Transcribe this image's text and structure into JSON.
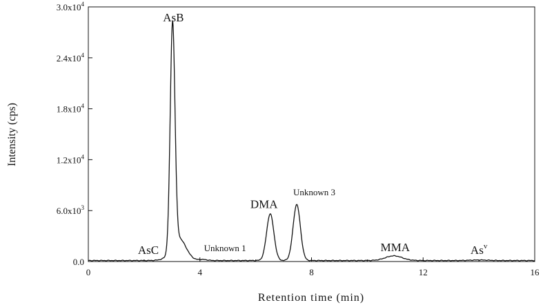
{
  "chart_data": {
    "type": "line",
    "title": "",
    "xlabel": "Retention time (min)",
    "ylabel": "Intensity (cps)",
    "xlim": [
      0,
      16
    ],
    "ylim": [
      0,
      30000
    ],
    "x_ticks": [
      0,
      4,
      8,
      12,
      16
    ],
    "y_ticks": [
      {
        "value": 0,
        "label": "0.0",
        "exp": ""
      },
      {
        "value": 6000,
        "label": "6.0x10",
        "exp": "3"
      },
      {
        "value": 12000,
        "label": "1.2x10",
        "exp": "4"
      },
      {
        "value": 18000,
        "label": "1.8x10",
        "exp": "4"
      },
      {
        "value": 24000,
        "label": "2.4x10",
        "exp": "4"
      },
      {
        "value": 30000,
        "label": "3.0x10",
        "exp": "4"
      }
    ],
    "grid": false,
    "line_color": "#111111",
    "baseline": 120,
    "peaks": [
      {
        "center": 2.65,
        "height": 60,
        "width": 0.18
      },
      {
        "center": 3.02,
        "height": 26500,
        "width": 0.085
      },
      {
        "center": 3.25,
        "height": 2600,
        "width": 0.25
      },
      {
        "center": 4.1,
        "height": 120,
        "width": 0.15
      },
      {
        "center": 6.52,
        "height": 5500,
        "width": 0.13
      },
      {
        "center": 7.47,
        "height": 6600,
        "width": 0.13
      },
      {
        "center": 10.95,
        "height": 550,
        "width": 0.3
      },
      {
        "center": 14.0,
        "height": 60,
        "width": 0.3
      }
    ],
    "annotations": [
      {
        "text": "AsB",
        "sup": "",
        "x": 3.05,
        "y": 28300,
        "size": "large"
      },
      {
        "text": "AsC",
        "sup": "",
        "x": 2.15,
        "y": 900,
        "size": "large"
      },
      {
        "text": "Unknown 1",
        "sup": "",
        "x": 4.9,
        "y": 1200,
        "size": "small"
      },
      {
        "text": "DMA",
        "sup": "",
        "x": 6.3,
        "y": 6300,
        "size": "large"
      },
      {
        "text": "Unknown 3",
        "sup": "",
        "x": 8.1,
        "y": 7800,
        "size": "small"
      },
      {
        "text": "MMA",
        "sup": "",
        "x": 11.0,
        "y": 1200,
        "size": "large"
      },
      {
        "text": "As",
        "sup": "v",
        "x": 14.0,
        "y": 900,
        "size": "large"
      }
    ]
  }
}
